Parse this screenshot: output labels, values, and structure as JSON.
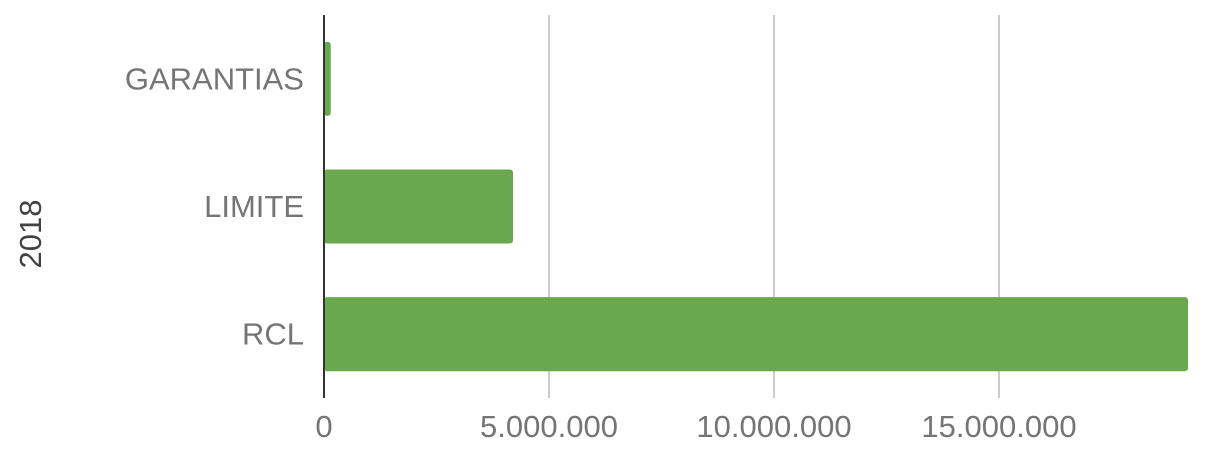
{
  "chart_data": {
    "type": "bar",
    "orientation": "horizontal",
    "ylabel": "2018",
    "xlabel": "",
    "categories": [
      "GARANTIAS",
      "LIMITE",
      "RCL"
    ],
    "values": [
      150000,
      4200000,
      19200000
    ],
    "xlim": [
      0,
      19200000
    ],
    "x_ticks": [
      0,
      5000000,
      10000000,
      15000000
    ],
    "x_tick_labels": [
      "0",
      "5.000.000",
      "10.000.000",
      "15.000.000"
    ],
    "grid": "vertical",
    "legend": "none",
    "colors": {
      "bar": "#6aa84f",
      "grid": "#cccccc",
      "axis": "#333333",
      "text": "#757575"
    }
  }
}
